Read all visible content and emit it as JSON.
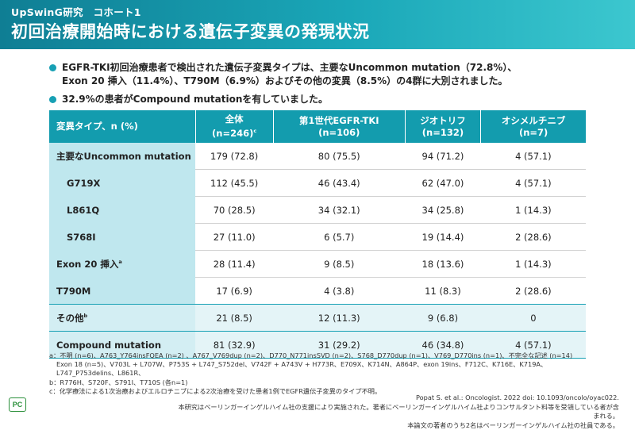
{
  "header": {
    "supertitle": "UpSwinG研究　コホート1",
    "title": "初回治療開始時における遺伝子変異の発現状況"
  },
  "bullets": [
    "EGFR-TKI初回治療患者で検出された遺伝子変異タイプは、主要なUncommon mutation（72.8%）、",
    "Exon 20 挿入（11.4%）、T790M（6.9%）およびその他の変異（8.5%）の4群に大別されました。",
    "32.9%の患者がCompound mutationを有していました。"
  ],
  "table": {
    "headers": [
      {
        "line1": "変異タイプ、n (%)",
        "line2": ""
      },
      {
        "line1": "全体",
        "line2": "(n=246)",
        "sup": "c"
      },
      {
        "line1": "第1世代EGFR-TKI",
        "line2": "(n=106)"
      },
      {
        "line1": "ジオトリフ",
        "line2": "(n=132)"
      },
      {
        "line1": "オシメルチニブ",
        "line2": "(n=7)"
      }
    ],
    "rows": [
      {
        "label": "主要なUncommon mutation",
        "cells": [
          "179 (72.8)",
          "80 (75.5)",
          "94 (71.2)",
          "4 (57.1)"
        ]
      },
      {
        "label": "G719X",
        "cells": [
          "112 (45.5)",
          "46 (43.4)",
          "62 (47.0)",
          "4 (57.1)"
        ]
      },
      {
        "label": "L861Q",
        "cells": [
          "70 (28.5)",
          "34 (32.1)",
          "34 (25.8)",
          "1 (14.3)"
        ]
      },
      {
        "label": "S768I",
        "cells": [
          "27 (11.0)",
          "6 (5.7)",
          "19 (14.4)",
          "2 (28.6)"
        ]
      },
      {
        "label": "Exon 20 挿入",
        "sup": "a",
        "cells": [
          "28 (11.4)",
          "9 (8.5)",
          "18 (13.6)",
          "1 (14.3)"
        ]
      },
      {
        "label": "T790M",
        "cells": [
          "17 (6.9)",
          "4 (3.8)",
          "11 (8.3)",
          "2 (28.6)"
        ]
      },
      {
        "label": "その他",
        "sup": "b",
        "cells": [
          "21 (8.5)",
          "12 (11.3)",
          "9 (6.8)",
          "0"
        ]
      },
      {
        "label": "Compound mutation",
        "cells": [
          "81 (32.9)",
          "31 (29.2)",
          "46 (34.8)",
          "4 (57.1)"
        ]
      }
    ]
  },
  "notes": [
    "a：不明 (n=6)、A763_Y764insFQEA (n=2) 、A767_V769dup (n=2)、D770_N771insSVD (n=2)、S768_D770dup (n=1)、V769_D770ins (n=1)、不完全な記述 (n=14)",
    "Exon 18 (n=5)、V703L + L707W、P753S + L747_S752del、V742F + A743V + H773R、E709X、K714N、A864P、exon 19ins、F712C、K716E、K719A、L747_P753delins、L861R、",
    "b：R776H、S720F、S791I、T710S (各n=1)",
    "c：化学療法による1次治療およびエルロチニブによる2次治療を受けた患者1例でEGFR遺伝子変異のタイプ不明。"
  ],
  "references": [
    "Popat S. et al.: Oncologist. 2022 doi: 10.1093/oncolo/oyac022.",
    "本研究はベーリンガーインゲルハイム社の支援により実施された。著者にベーリンガーインゲルハイム社よりコンサルタント料等を受領している者が含まれる。",
    "本論文の著者のうち2名はベーリンガーインゲルハイム社の社員である。"
  ],
  "logo_text": "PC"
}
